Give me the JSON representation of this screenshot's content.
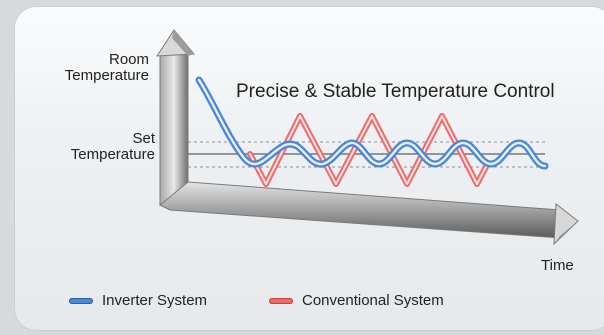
{
  "diagram": {
    "title": "Precise & Stable Temperature Control",
    "y_top_label": [
      "Room",
      "Temperature"
    ],
    "y_mid_label": [
      "Set",
      "Temperature"
    ],
    "x_label": "Time"
  },
  "legend": [
    {
      "label": "Inverter System",
      "color": "#4a86d8"
    },
    {
      "label": "Conventional System",
      "color": "#ee6a6a"
    }
  ],
  "colors": {
    "axis_light": "#eeeeee",
    "axis_dark": "#6e6e6e",
    "inverter": "#4a86d8",
    "conventional": "#ee6a6a"
  }
}
